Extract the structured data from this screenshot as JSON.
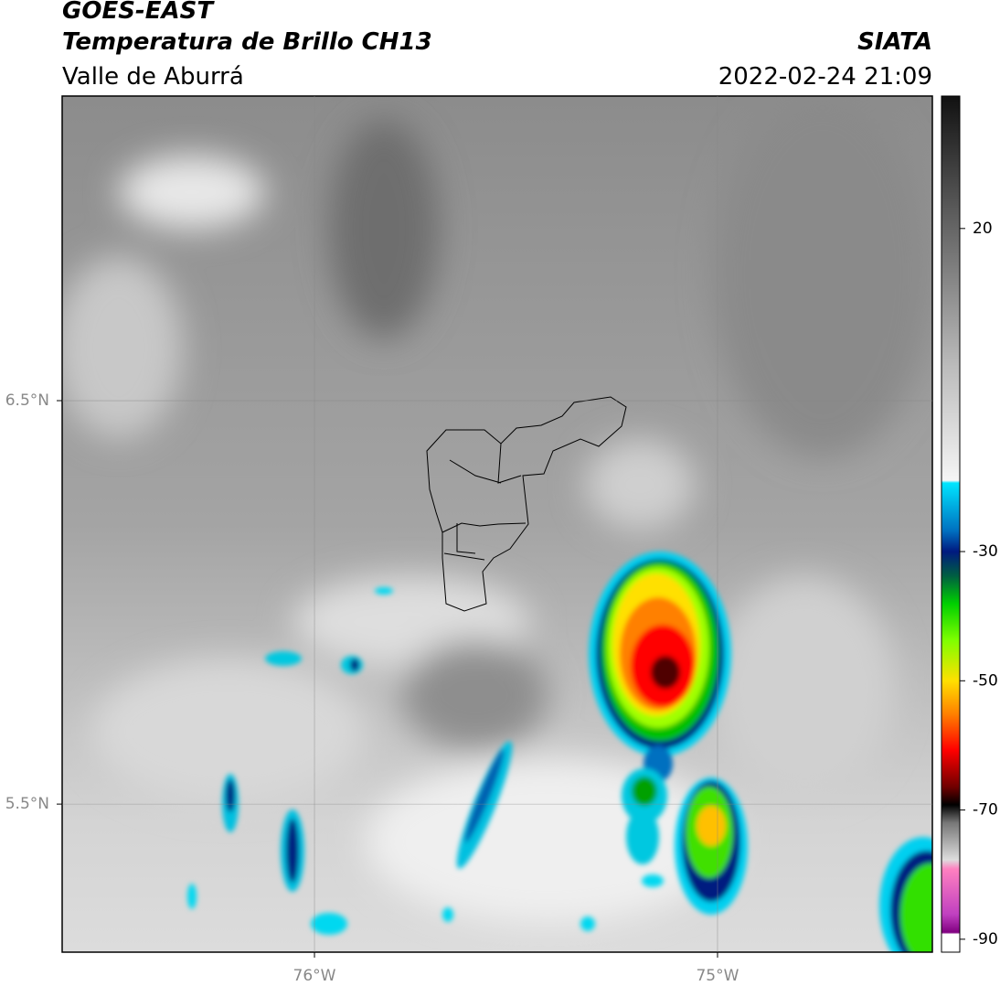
{
  "header": {
    "title": "GOES-EAST",
    "subtitle": "Temperatura de Brillo CH13",
    "region": "Valle de Aburrá",
    "source": "SIATA",
    "datetime": "2022-02-24 21:09"
  },
  "map": {
    "xlim": [
      -76.626,
      -74.467
    ],
    "ylim": [
      5.133,
      7.255
    ],
    "xticks": [
      {
        "value": -76,
        "label": "76°W"
      },
      {
        "value": -75,
        "label": "75°W"
      }
    ],
    "yticks": [
      {
        "value": 6.5,
        "label": "6.5°N"
      },
      {
        "value": 5.5,
        "label": "5.5°N"
      }
    ],
    "grid": true
  },
  "colorbar": {
    "lim": [
      -92,
      40.5
    ],
    "ticks": [
      20,
      -30,
      -50,
      -70,
      -90
    ]
  }
}
